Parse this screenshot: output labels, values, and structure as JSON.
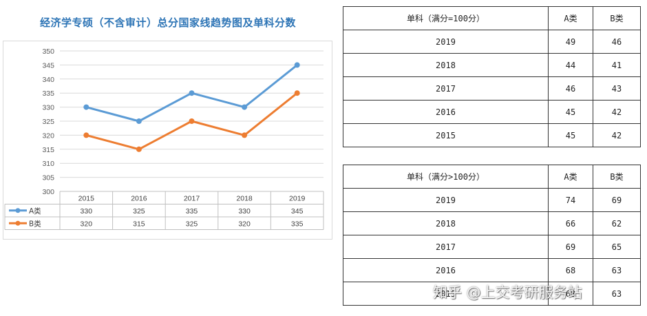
{
  "chart_data": {
    "type": "line",
    "title": "经济学专硕（不含审计）总分国家线趋势图及单科分数",
    "categories": [
      "2015",
      "2016",
      "2017",
      "2018",
      "2019"
    ],
    "series": [
      {
        "name": "A类",
        "color": "#5b9bd5",
        "values": [
          330,
          325,
          335,
          330,
          345
        ]
      },
      {
        "name": "B类",
        "color": "#ed7d31",
        "values": [
          320,
          315,
          325,
          320,
          335
        ]
      }
    ],
    "ylim": [
      300,
      350
    ],
    "ystep": 5,
    "grid": true,
    "legend": "data-table"
  },
  "tables": [
    {
      "headers": [
        "单科（满分=100分）",
        "A类",
        "B类"
      ],
      "rows": [
        [
          "2019",
          "49",
          "46"
        ],
        [
          "2018",
          "44",
          "41"
        ],
        [
          "2017",
          "46",
          "43"
        ],
        [
          "2016",
          "45",
          "42"
        ],
        [
          "2015",
          "45",
          "42"
        ]
      ]
    },
    {
      "headers": [
        "单科（满分>100分）",
        "A类",
        "B类"
      ],
      "rows": [
        [
          "2019",
          "74",
          "69"
        ],
        [
          "2018",
          "66",
          "62"
        ],
        [
          "2017",
          "69",
          "65"
        ],
        [
          "2016",
          "68",
          "63"
        ],
        [
          "2015",
          "68",
          "63"
        ]
      ]
    }
  ],
  "watermark": "知乎 @上交考研服务站"
}
